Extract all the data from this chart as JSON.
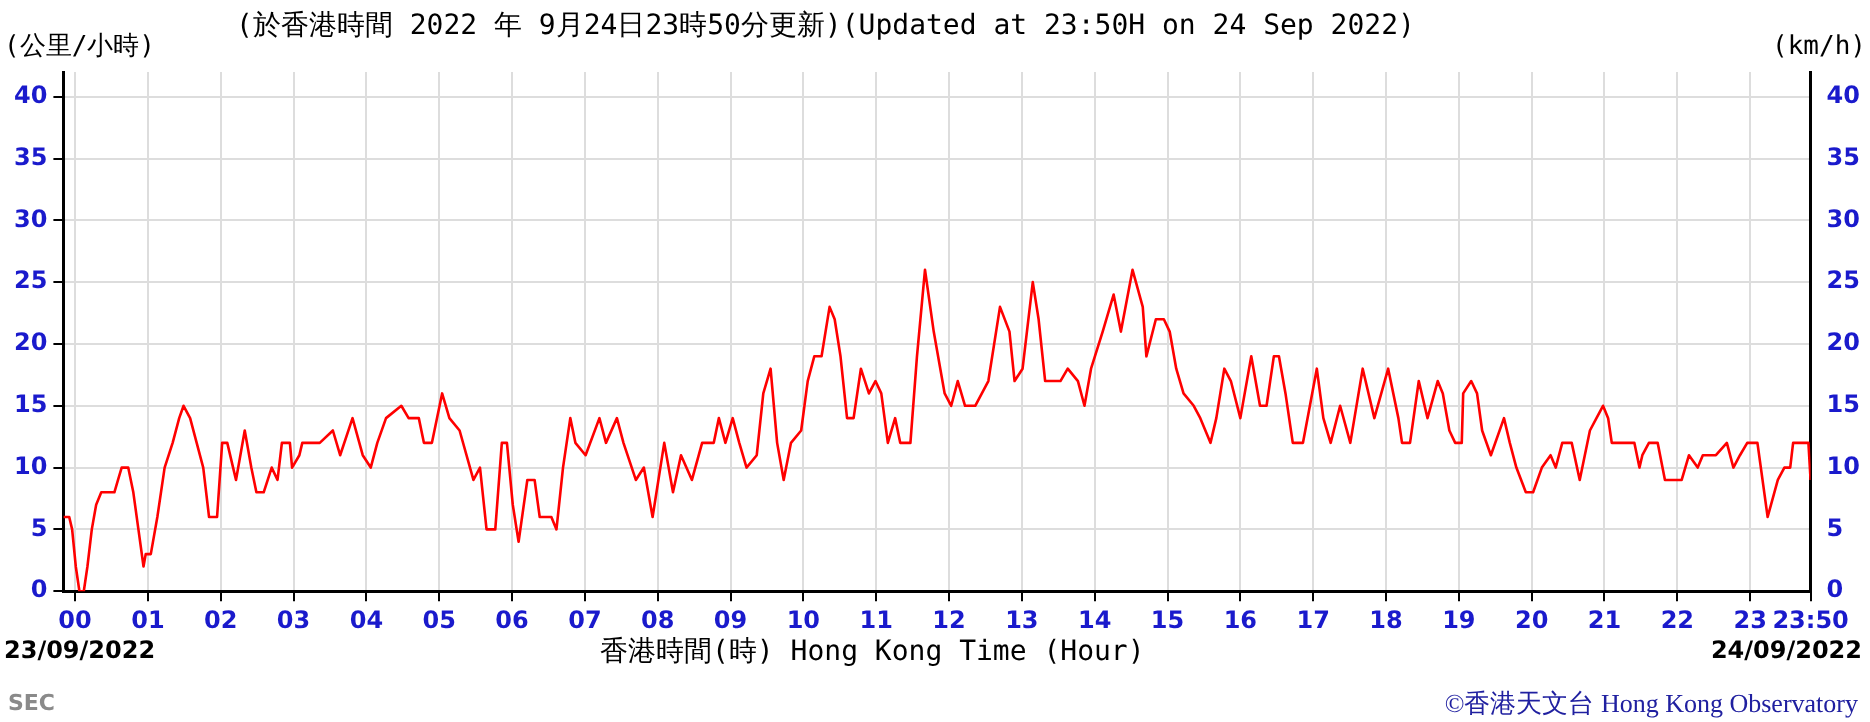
{
  "chart_data": {
    "type": "line",
    "title": "(於香港時間 2022 年 9月24日23時50分更新)(Updated at 23:50H on 24 Sep 2022)",
    "xlabel": "香港時間(時) Hong Kong Time (Hour)",
    "ylabel": "(公里/小時)",
    "y2label": "(km/h)",
    "annotations": [
      "23/09/2022",
      "24/09/2022",
      "SEC",
      "©香港天文台 Hong Kong Observatory"
    ],
    "x": [
      -0.16,
      -0.08,
      -0.04,
      0.01,
      0.06,
      0.12,
      0.17,
      0.23,
      0.29,
      0.36,
      0.54,
      0.59,
      0.64,
      0.73,
      0.8,
      0.87,
      0.94,
      0.97,
      1.04,
      1.13,
      1.23,
      1.34,
      1.43,
      1.49,
      1.58,
      1.67,
      1.76,
      1.84,
      1.95,
      2.02,
      2.09,
      2.17,
      2.21,
      2.33,
      2.42,
      2.49,
      2.59,
      2.7,
      2.78,
      2.84,
      2.95,
      2.98,
      3.08,
      3.12,
      3.36,
      3.54,
      3.64,
      3.81,
      3.95,
      4.06,
      4.15,
      4.27,
      4.48,
      4.58,
      4.72,
      4.79,
      4.9,
      5.04,
      5.14,
      5.28,
      5.47,
      5.56,
      5.65,
      5.77,
      5.86,
      5.93,
      6.01,
      6.09,
      6.21,
      6.31,
      6.38,
      6.54,
      6.61,
      6.7,
      6.8,
      6.87,
      7.01,
      7.2,
      7.29,
      7.44,
      7.53,
      7.7,
      7.81,
      7.93,
      8.09,
      8.21,
      8.32,
      8.47,
      8.61,
      8.77,
      8.84,
      8.93,
      9.03,
      9.12,
      9.22,
      9.36,
      9.45,
      9.55,
      9.64,
      9.73,
      9.83,
      9.97,
      10.06,
      10.15,
      10.25,
      10.36,
      10.43,
      10.51,
      10.6,
      10.69,
      10.79,
      10.9,
      10.99,
      11.07,
      11.16,
      11.26,
      11.33,
      11.47,
      11.56,
      11.67,
      11.79,
      11.94,
      12.03,
      12.12,
      12.22,
      12.36,
      12.54,
      12.7,
      12.83,
      12.9,
      13.01,
      13.15,
      13.23,
      13.32,
      13.53,
      13.63,
      13.77,
      13.86,
      13.95,
      14.11,
      14.26,
      14.36,
      14.52,
      14.66,
      14.71,
      14.84,
      14.95,
      15.03,
      15.12,
      15.22,
      15.36,
      15.45,
      15.59,
      15.67,
      15.78,
      15.87,
      16.0,
      16.15,
      16.27,
      16.36,
      16.46,
      16.53,
      16.62,
      16.72,
      16.86,
      17.05,
      17.14,
      17.24,
      17.37,
      17.51,
      17.68,
      17.84,
      18.03,
      18.17,
      18.22,
      18.33,
      18.45,
      18.57,
      18.71,
      18.78,
      18.87,
      18.95,
      19.04,
      19.06,
      19.17,
      19.25,
      19.32,
      19.44,
      19.62,
      19.7,
      19.79,
      19.92,
      20.02,
      20.14,
      20.26,
      20.33,
      20.42,
      20.55,
      20.66,
      20.8,
      20.89,
      20.98,
      21.05,
      21.1,
      21.41,
      21.48,
      21.52,
      21.61,
      21.73,
      21.83,
      22.06,
      22.16,
      22.28,
      22.35,
      22.53,
      22.68,
      22.77,
      22.86,
      22.96,
      23.1,
      23.24,
      23.38,
      23.47,
      23.55,
      23.59,
      23.8,
      23.83
    ],
    "series": [
      {
        "color": "#ff0000",
        "axis": "y",
        "values": [
          6,
          6,
          5,
          2,
          0,
          0,
          2,
          5,
          7,
          8,
          8,
          9,
          10,
          10,
          8,
          5,
          2,
          3,
          3,
          6,
          10,
          12,
          14,
          15,
          14,
          12,
          10,
          6,
          6,
          12,
          12,
          10,
          9,
          13,
          10,
          8,
          8,
          10,
          9,
          12,
          12,
          10,
          11,
          12,
          12,
          13,
          11,
          14,
          11,
          10,
          12,
          14,
          15,
          14,
          14,
          12,
          12,
          16,
          14,
          13,
          9,
          10,
          5,
          5,
          12,
          12,
          7,
          4,
          9,
          9,
          6,
          6,
          5,
          10,
          14,
          12,
          11,
          14,
          12,
          14,
          12,
          9,
          10,
          6,
          12,
          8,
          11,
          9,
          12,
          12,
          14,
          12,
          14,
          12,
          10,
          11,
          16,
          18,
          12,
          9,
          12,
          13,
          17,
          19,
          19,
          23,
          22,
          19,
          14,
          14,
          18,
          16,
          17,
          16,
          12,
          14,
          12,
          12,
          19,
          26,
          21,
          16,
          15,
          17,
          15,
          15,
          17,
          23,
          21,
          17,
          18,
          25,
          22,
          17,
          17,
          18,
          17,
          15,
          18,
          21,
          24,
          21,
          26,
          23,
          19,
          22,
          22,
          21,
          18,
          16,
          15,
          14,
          12,
          14,
          18,
          17,
          14,
          19,
          15,
          15,
          19,
          19,
          16,
          12,
          12,
          18,
          14,
          12,
          15,
          12,
          18,
          14,
          18,
          14,
          12,
          12,
          17,
          14,
          17,
          16,
          13,
          12,
          12,
          16,
          17,
          16,
          13,
          11,
          14,
          12,
          10,
          8,
          8,
          10,
          11,
          10,
          12,
          12,
          9,
          13,
          14,
          15,
          14,
          12,
          12,
          10,
          11,
          12,
          12,
          9,
          9,
          11,
          10,
          11,
          11,
          12,
          10,
          11,
          12,
          12,
          6,
          9,
          10,
          10,
          12,
          12,
          9
        ]
      }
    ],
    "xlim": [
      -0.16,
      23.83
    ],
    "xticks": [
      {
        "value": 0,
        "label": "00"
      },
      {
        "value": 1,
        "label": "01"
      },
      {
        "value": 2,
        "label": "02"
      },
      {
        "value": 3,
        "label": "03"
      },
      {
        "value": 4,
        "label": "04"
      },
      {
        "value": 5,
        "label": "05"
      },
      {
        "value": 6,
        "label": "06"
      },
      {
        "value": 7,
        "label": "07"
      },
      {
        "value": 8,
        "label": "08"
      },
      {
        "value": 9,
        "label": "09"
      },
      10,
      11,
      12,
      13,
      14,
      15,
      16,
      17,
      18,
      19,
      20,
      21,
      22,
      23,
      {
        "value": 23.83,
        "label": "23:50"
      }
    ],
    "ylim": [
      0,
      42
    ],
    "yticks": [
      0,
      5,
      10,
      15,
      20,
      25,
      30,
      35,
      40
    ],
    "y2lim": [
      0,
      42
    ],
    "y2ticks": [
      0,
      5,
      10,
      15,
      20,
      25,
      30,
      35,
      40
    ],
    "grid": true,
    "legend": false,
    "marker": "none",
    "line_style": "solid"
  }
}
